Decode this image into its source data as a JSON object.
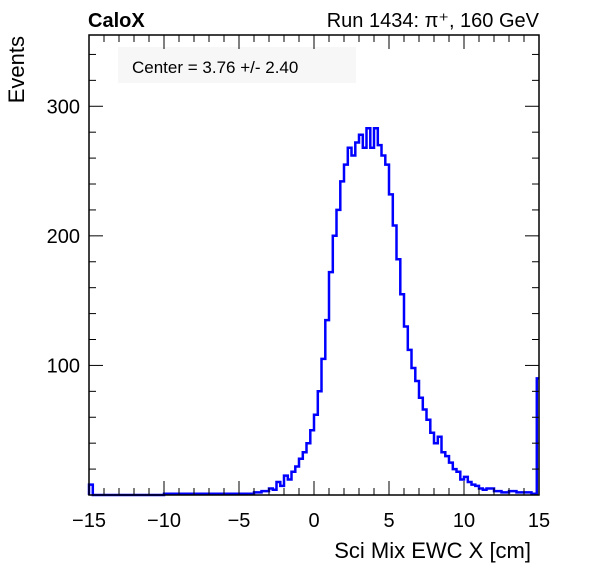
{
  "header": {
    "experiment": "CaloX",
    "run_info": "Run 1434:   π⁺, 160 GeV"
  },
  "stats_box": {
    "text": "Center = 3.76 +/- 2.40"
  },
  "chart_data": {
    "type": "histogram",
    "title": "",
    "xlabel": "Sci Mix EWC X [cm]",
    "ylabel": "Events",
    "xlim": [
      -15,
      15
    ],
    "ylim": [
      0,
      355
    ],
    "xticks": [
      -15,
      -10,
      -5,
      0,
      5,
      10,
      15
    ],
    "xtick_labels": [
      "−15",
      "−10",
      "−5",
      "0",
      "5",
      "10",
      "15"
    ],
    "yticks": [
      100,
      200,
      300
    ],
    "ytick_labels": [
      "100",
      "200",
      "300"
    ],
    "line_color": "#0000ff",
    "bin_width": 0.25,
    "series": [
      {
        "name": "",
        "points": [
          [
            -15.0,
            8
          ],
          [
            -14.75,
            0
          ],
          [
            -12.0,
            0
          ],
          [
            -10.0,
            1
          ],
          [
            -8.0,
            1
          ],
          [
            -6.0,
            1
          ],
          [
            -5.0,
            1
          ],
          [
            -4.0,
            2
          ],
          [
            -3.5,
            3
          ],
          [
            -3.0,
            5
          ],
          [
            -2.75,
            4
          ],
          [
            -2.5,
            10
          ],
          [
            -2.25,
            7
          ],
          [
            -2.0,
            15
          ],
          [
            -1.75,
            12
          ],
          [
            -1.5,
            18
          ],
          [
            -1.25,
            22
          ],
          [
            -1.0,
            28
          ],
          [
            -0.75,
            33
          ],
          [
            -0.5,
            40
          ],
          [
            -0.25,
            50
          ],
          [
            0.0,
            62
          ],
          [
            0.25,
            80
          ],
          [
            0.5,
            105
          ],
          [
            0.75,
            135
          ],
          [
            1.0,
            172
          ],
          [
            1.25,
            200
          ],
          [
            1.5,
            220
          ],
          [
            1.75,
            242
          ],
          [
            2.0,
            255
          ],
          [
            2.25,
            268
          ],
          [
            2.5,
            262
          ],
          [
            2.75,
            272
          ],
          [
            3.0,
            278
          ],
          [
            3.25,
            268
          ],
          [
            3.5,
            283
          ],
          [
            3.75,
            268
          ],
          [
            4.0,
            283
          ],
          [
            4.25,
            270
          ],
          [
            4.5,
            262
          ],
          [
            4.75,
            255
          ],
          [
            5.0,
            232
          ],
          [
            5.25,
            208
          ],
          [
            5.5,
            182
          ],
          [
            5.75,
            155
          ],
          [
            6.0,
            130
          ],
          [
            6.25,
            112
          ],
          [
            6.5,
            98
          ],
          [
            6.75,
            88
          ],
          [
            7.0,
            75
          ],
          [
            7.25,
            66
          ],
          [
            7.5,
            58
          ],
          [
            7.75,
            48
          ],
          [
            8.0,
            40
          ],
          [
            8.25,
            45
          ],
          [
            8.5,
            33
          ],
          [
            8.75,
            30
          ],
          [
            9.0,
            25
          ],
          [
            9.25,
            20
          ],
          [
            9.5,
            18
          ],
          [
            9.75,
            12
          ],
          [
            10.0,
            14
          ],
          [
            10.25,
            10
          ],
          [
            10.5,
            8
          ],
          [
            10.75,
            7
          ],
          [
            11.0,
            5
          ],
          [
            11.25,
            4
          ],
          [
            11.5,
            5
          ],
          [
            12.0,
            3
          ],
          [
            12.5,
            2
          ],
          [
            13.0,
            3
          ],
          [
            13.5,
            2
          ],
          [
            14.0,
            2
          ],
          [
            14.5,
            1
          ],
          [
            14.75,
            1
          ],
          [
            14.85,
            90
          ]
        ]
      }
    ],
    "legend_position": "top-left",
    "grid": false
  }
}
